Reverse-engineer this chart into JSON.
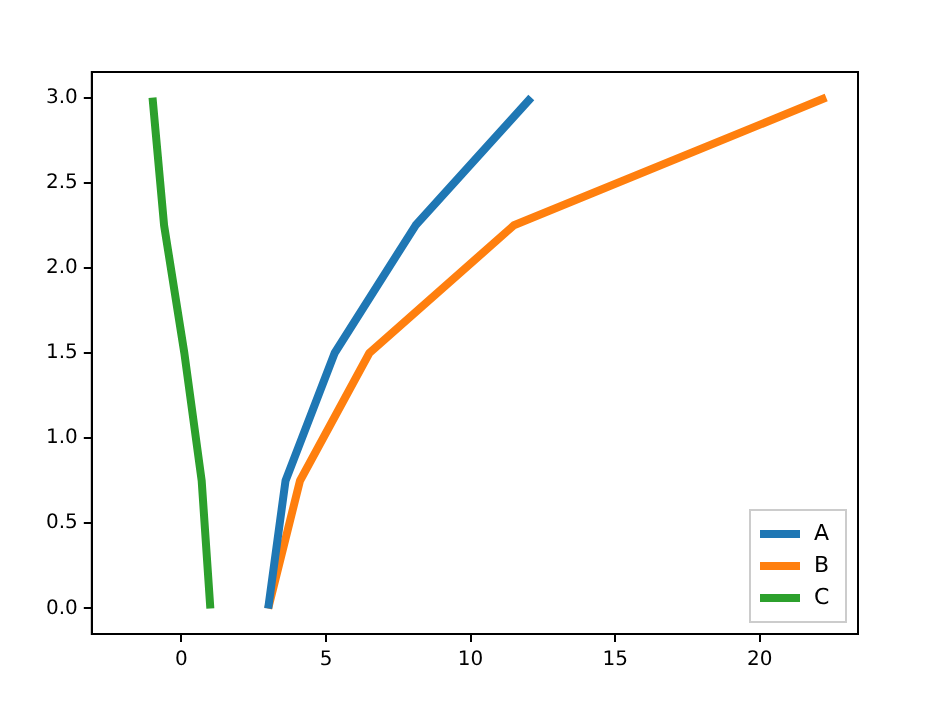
{
  "chart_data": {
    "type": "line",
    "xlim": [
      -3.1,
      23.4
    ],
    "ylim": [
      -0.15,
      3.15
    ],
    "xticks": [
      0,
      5,
      10,
      15,
      20
    ],
    "yticks": [
      {
        "value": 0,
        "label": "0.0"
      },
      {
        "value": 0.5,
        "label": "0.5"
      },
      {
        "value": 1,
        "label": "1.0"
      },
      {
        "value": 1.5,
        "label": "1.5"
      },
      {
        "value": 2,
        "label": "2.0"
      },
      {
        "value": 2.5,
        "label": "2.5"
      },
      {
        "value": 3,
        "label": "3.0"
      }
    ],
    "series": [
      {
        "name": "A",
        "color": "#1f77b4",
        "x": [
          3.0,
          3.6,
          5.3,
          8.1,
          12.1
        ],
        "values": [
          0,
          0.75,
          1.5,
          2.25,
          3
        ]
      },
      {
        "name": "B",
        "color": "#ff7f0e",
        "x": [
          3.0,
          4.1,
          6.5,
          11.5,
          22.3
        ],
        "values": [
          0,
          0.75,
          1.5,
          2.25,
          3
        ]
      },
      {
        "name": "C",
        "color": "#2ca02c",
        "x": [
          1.0,
          0.7,
          0.1,
          -0.6,
          -1.0
        ],
        "values": [
          0,
          0.75,
          1.5,
          2.25,
          3
        ]
      }
    ],
    "legend": "bottom right",
    "grid": false,
    "marker": "none",
    "line_style": "solid"
  }
}
